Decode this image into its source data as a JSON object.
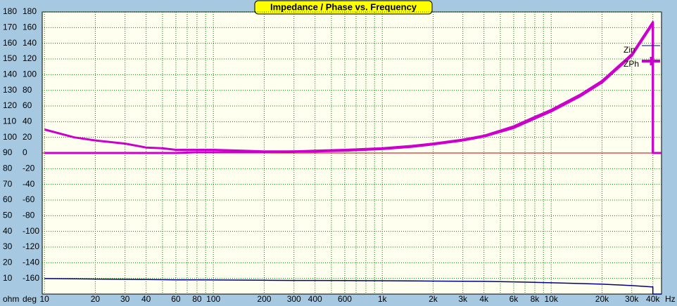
{
  "chart_data": {
    "type": "line",
    "title": "Impedance / Phase vs. Frequency",
    "y_label": "ohm",
    "y2_label": "deg",
    "x_label": "Hz",
    "log_x": true,
    "grid": true,
    "legend": "upper right",
    "xlim": [
      9.7,
      45000
    ],
    "xticks": [
      10,
      20,
      30,
      40,
      60,
      80,
      100,
      200,
      300,
      400,
      600,
      {
        "value": 1000,
        "label": "1k"
      },
      {
        "value": 2000,
        "label": "2k"
      },
      {
        "value": 3000,
        "label": "3k"
      },
      {
        "value": 4000,
        "label": "4k"
      },
      {
        "value": 6000,
        "label": "6k"
      },
      {
        "value": 8000,
        "label": "8k"
      },
      {
        "value": 10000,
        "label": "10k"
      },
      {
        "value": 20000,
        "label": "20k"
      },
      {
        "value": 30000,
        "label": "30k"
      },
      {
        "value": 40000,
        "label": "40k"
      }
    ],
    "xgrid_minor": [
      50,
      70,
      90,
      500,
      700,
      800,
      900,
      5000,
      7000,
      9000
    ],
    "ylim": [
      0,
      180
    ],
    "yticks": [
      180,
      170,
      160,
      150,
      140,
      130,
      120,
      110,
      100,
      90,
      80,
      70,
      60,
      50,
      40,
      30,
      20,
      10
    ],
    "y2lim": [
      -180,
      180
    ],
    "y2ticks": [
      180,
      160,
      140,
      120,
      100,
      80,
      60,
      40,
      20,
      0,
      -20,
      -40,
      -60,
      -80,
      -100,
      -120,
      -140,
      -160
    ],
    "x": [
      10,
      15,
      20,
      30,
      40,
      50,
      60,
      80,
      100,
      150,
      200,
      300,
      400,
      600,
      1000,
      1500,
      2000,
      3000,
      4000,
      6000,
      8000,
      10000,
      15000,
      20000,
      30000,
      40000,
      40000,
      45000
    ],
    "series": [
      {
        "name": "Zin",
        "color": "#000080",
        "values": [
          9.9,
          9.7,
          9.6,
          9.4,
          9.3,
          9.2,
          9.1,
          9.1,
          9.0,
          8.9,
          8.8,
          8.7,
          8.7,
          8.6,
          8.5,
          8.4,
          8.3,
          8.2,
          8.1,
          7.8,
          7.5,
          7.2,
          6.7,
          6.3,
          5.4,
          4.5,
          0,
          0
        ]
      },
      {
        "name": "ZPh",
        "color": "#cc00cc",
        "axis": "y2",
        "values": [
          30,
          20,
          16,
          12,
          7,
          6,
          4,
          4,
          4,
          3,
          2,
          2,
          3,
          4,
          6,
          9,
          12,
          17,
          22,
          34,
          46,
          55,
          75,
          92,
          126,
          167,
          0,
          0
        ]
      },
      {
        "color": "#cc00cc",
        "axis": "y2",
        "values": [
          0,
          0,
          0,
          0,
          0,
          0,
          0,
          1,
          1,
          1,
          1,
          2,
          2,
          3,
          5,
          8,
          11,
          16,
          21,
          32,
          44,
          53,
          73,
          90,
          124,
          165,
          0,
          0
        ]
      }
    ]
  }
}
